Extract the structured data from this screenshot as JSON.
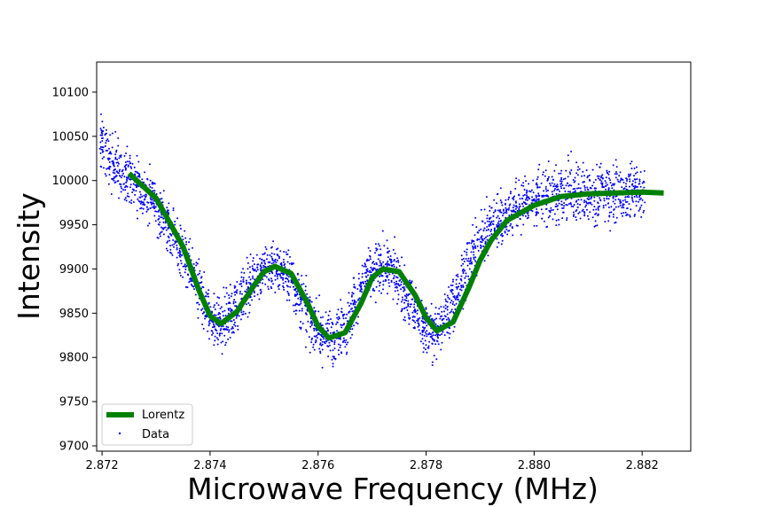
{
  "chart_data": {
    "type": "scatter",
    "title": "",
    "xlabel": "Microwave Frequency (MHz)",
    "ylabel": "Intensity",
    "xlim": [
      2.8719,
      2.8829
    ],
    "ylim": [
      9694,
      10134
    ],
    "x_ticks": [
      2.872,
      2.874,
      2.876,
      2.878,
      2.88,
      2.882
    ],
    "x_tick_labels": [
      "2.872",
      "2.874",
      "2.876",
      "2.878",
      "2.880",
      "2.882"
    ],
    "y_ticks": [
      9700,
      9750,
      9800,
      9850,
      9900,
      9950,
      10000,
      10050,
      10100
    ],
    "y_tick_labels": [
      "9700",
      "9750",
      "9800",
      "9850",
      "9900",
      "9950",
      "10000",
      "10050",
      "10100"
    ],
    "grid": false,
    "legend_placement": "lower-left",
    "series": [
      {
        "name": "Lorentz",
        "kind": "line",
        "color": "#008000",
        "x": [
          2.8725,
          2.873,
          2.8735,
          2.8738,
          2.874,
          2.8742,
          2.8745,
          2.8748,
          2.875,
          2.8752,
          2.8755,
          2.8758,
          2.876,
          2.8762,
          2.8765,
          2.8768,
          2.877,
          2.8772,
          2.8775,
          2.8778,
          2.878,
          2.8782,
          2.8785,
          2.8788,
          2.879,
          2.8792,
          2.8795,
          2.88,
          2.8805,
          2.881,
          2.8815,
          2.882,
          2.8824
        ],
        "y": [
          10008,
          9980,
          9925,
          9875,
          9847,
          9838,
          9852,
          9880,
          9897,
          9903,
          9895,
          9862,
          9835,
          9822,
          9828,
          9862,
          9890,
          9900,
          9897,
          9870,
          9845,
          9830,
          9840,
          9880,
          9910,
          9932,
          9955,
          9972,
          9982,
          9985,
          9986,
          9987,
          9986
        ]
      },
      {
        "name": "Data",
        "kind": "scatter",
        "color": "#0000ff",
        "x": [
          2.872,
          2.8721,
          2.8722,
          2.8723,
          2.8724,
          2.8725,
          2.8726,
          2.8727,
          2.8728,
          2.8729,
          2.873,
          2.8731,
          2.8732,
          2.8733,
          2.8734,
          2.8735,
          2.8736,
          2.8737,
          2.8738,
          2.8739,
          2.874,
          2.8741,
          2.8742,
          2.8743,
          2.8744,
          2.8745,
          2.8746,
          2.8747,
          2.8748,
          2.8749,
          2.875,
          2.8751,
          2.8752,
          2.8753,
          2.8754,
          2.8755,
          2.8756,
          2.8757,
          2.8758,
          2.8759,
          2.876,
          2.8761,
          2.8762,
          2.8763,
          2.8764,
          2.8765,
          2.8766,
          2.8767,
          2.8768,
          2.8769,
          2.877,
          2.8771,
          2.8772,
          2.8773,
          2.8774,
          2.8775,
          2.8776,
          2.8777,
          2.8778,
          2.8779,
          2.878,
          2.8781,
          2.8782,
          2.8783,
          2.8784,
          2.8785,
          2.8786,
          2.8787,
          2.8788,
          2.8789,
          2.879,
          2.8791,
          2.8792,
          2.8793,
          2.8794,
          2.8795,
          2.8796,
          2.8797,
          2.8798,
          2.8799,
          2.88,
          2.8801,
          2.8802,
          2.8803,
          2.8804,
          2.8805,
          2.8806,
          2.8807,
          2.8808,
          2.8809,
          2.881,
          2.8811,
          2.8812,
          2.8813,
          2.8814,
          2.8815,
          2.8816,
          2.8817,
          2.8818,
          2.8819,
          2.882
        ],
        "y": [
          10040,
          10030,
          10020,
          10012,
          10005,
          10008,
          9998,
          9990,
          9985,
          9980,
          9972,
          9962,
          9952,
          9940,
          9925,
          9915,
          9900,
          9888,
          9875,
          9860,
          9848,
          9840,
          9838,
          9843,
          9850,
          9860,
          9870,
          9880,
          9890,
          9895,
          9900,
          9903,
          9903,
          9900,
          9895,
          9888,
          9875,
          9862,
          9850,
          9840,
          9830,
          9825,
          9822,
          9825,
          9830,
          9838,
          9850,
          9862,
          9875,
          9888,
          9895,
          9900,
          9902,
          9900,
          9895,
          9888,
          9875,
          9862,
          9850,
          9840,
          9832,
          9828,
          9830,
          9838,
          9850,
          9862,
          9878,
          9893,
          9905,
          9918,
          9930,
          9940,
          9948,
          9955,
          9960,
          9963,
          9966,
          9970,
          9972,
          9975,
          9978,
          9980,
          9981,
          9982,
          9983,
          9984,
          9985,
          9985,
          9985,
          9986,
          9986,
          9986,
          9986,
          9986,
          9986,
          9987,
          9987,
          9987,
          9987,
          9987,
          9986
        ],
        "y_spread": [
          40,
          40,
          40,
          40,
          40,
          38,
          38,
          38,
          38,
          38,
          38,
          38,
          38,
          38,
          38,
          38,
          38,
          38,
          38,
          38,
          38,
          38,
          38,
          38,
          38,
          38,
          38,
          38,
          38,
          38,
          38,
          38,
          38,
          38,
          38,
          38,
          38,
          38,
          38,
          38,
          38,
          38,
          38,
          38,
          38,
          38,
          38,
          38,
          38,
          38,
          38,
          38,
          38,
          38,
          38,
          38,
          38,
          38,
          38,
          38,
          38,
          38,
          38,
          38,
          38,
          38,
          38,
          38,
          38,
          38,
          38,
          38,
          38,
          38,
          38,
          38,
          38,
          38,
          38,
          38,
          40,
          40,
          40,
          42,
          42,
          42,
          42,
          42,
          42,
          42,
          42,
          42,
          42,
          42,
          42,
          42,
          42,
          42,
          42,
          42,
          42
        ]
      }
    ]
  }
}
